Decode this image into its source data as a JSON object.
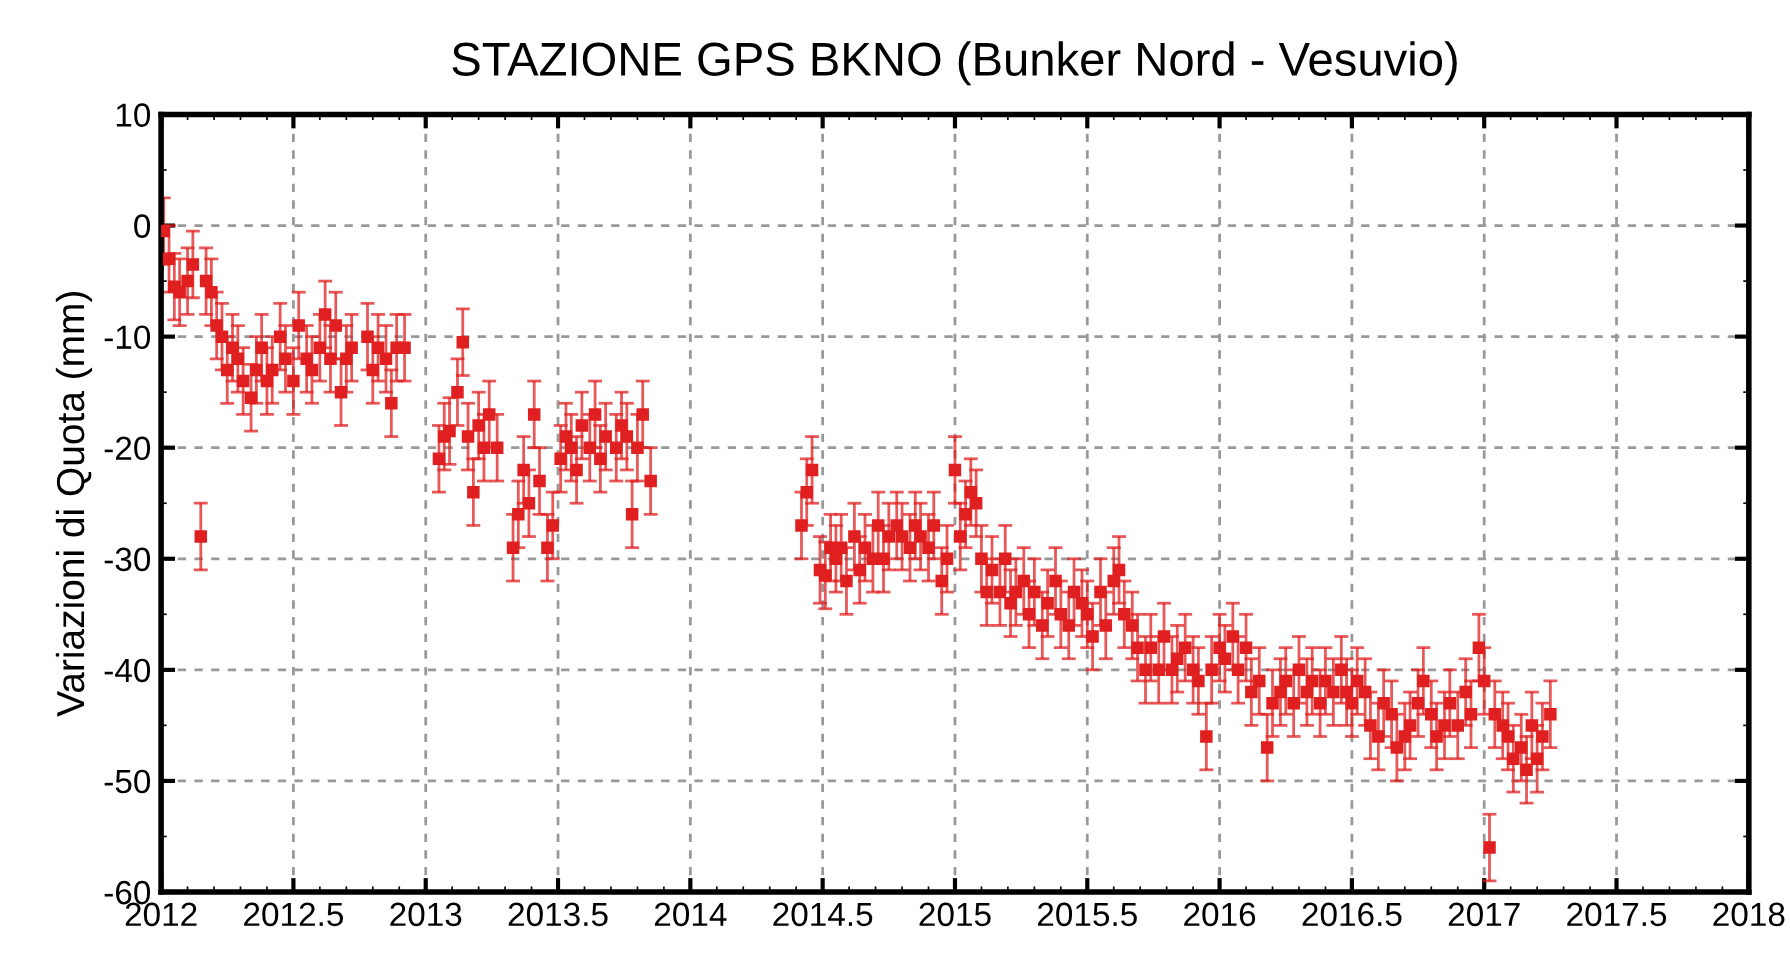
{
  "chart_data": {
    "type": "scatter",
    "title": "STAZIONE GPS BKNO (Bunker Nord - Vesuvio)",
    "ylabel": "Variazioni di Quota (mm)",
    "xlim": [
      2012,
      2018
    ],
    "xticks": [
      2012,
      2012.5,
      2013,
      2013.5,
      2014,
      2014.5,
      2015,
      2015.5,
      2016,
      2016.5,
      2017,
      2017.5,
      2018
    ],
    "ylim": [
      -60,
      10
    ],
    "yticks": [
      -60,
      -50,
      -40,
      -30,
      -20,
      -10,
      0,
      10
    ],
    "grid": true,
    "marker": "square",
    "series": [
      {
        "color": "#e02020",
        "x": [
          2012.01,
          2012.03,
          2012.05,
          2012.07,
          2012.1,
          2012.12,
          2012.15,
          2012.17,
          2012.19,
          2012.21,
          2012.23,
          2012.25,
          2012.27,
          2012.29,
          2012.31,
          2012.34,
          2012.36,
          2012.38,
          2012.4,
          2012.42,
          2012.45,
          2012.47,
          2012.5,
          2012.52,
          2012.55,
          2012.57,
          2012.6,
          2012.62,
          2012.64,
          2012.66,
          2012.68,
          2012.7,
          2012.72,
          2012.78,
          2012.8,
          2012.82,
          2012.85,
          2012.87,
          2012.89,
          2012.92,
          2013.05,
          2013.07,
          2013.09,
          2013.12,
          2013.14,
          2013.16,
          2013.18,
          2013.2,
          2013.22,
          2013.24,
          2013.27,
          2013.33,
          2013.35,
          2013.37,
          2013.39,
          2013.41,
          2013.43,
          2013.46,
          2013.48,
          2013.51,
          2013.53,
          2013.55,
          2013.57,
          2013.59,
          2013.62,
          2013.64,
          2013.66,
          2013.68,
          2013.72,
          2013.74,
          2013.76,
          2013.78,
          2013.8,
          2013.82,
          2013.85,
          2014.42,
          2014.44,
          2014.46,
          2014.49,
          2014.51,
          2014.53,
          2014.55,
          2014.57,
          2014.59,
          2014.62,
          2014.64,
          2014.66,
          2014.69,
          2014.71,
          2014.73,
          2014.75,
          2014.78,
          2014.8,
          2014.83,
          2014.85,
          2014.87,
          2014.9,
          2014.92,
          2014.95,
          2014.97,
          2015.0,
          2015.02,
          2015.04,
          2015.06,
          2015.08,
          2015.1,
          2015.12,
          2015.14,
          2015.17,
          2015.19,
          2015.21,
          2015.23,
          2015.26,
          2015.28,
          2015.3,
          2015.33,
          2015.35,
          2015.38,
          2015.4,
          2015.43,
          2015.45,
          2015.48,
          2015.5,
          2015.52,
          2015.55,
          2015.57,
          2015.6,
          2015.62,
          2015.64,
          2015.67,
          2015.69,
          2015.72,
          2015.74,
          2015.77,
          2015.79,
          2015.82,
          2015.84,
          2015.87,
          2015.9,
          2015.92,
          2015.95,
          2015.97,
          2016.0,
          2016.02,
          2016.05,
          2016.07,
          2016.1,
          2016.12,
          2016.15,
          2016.18,
          2016.2,
          2016.23,
          2016.25,
          2016.28,
          2016.3,
          2016.33,
          2016.35,
          2016.38,
          2016.4,
          2016.43,
          2016.46,
          2016.48,
          2016.5,
          2016.52,
          2016.55,
          2016.57,
          2016.6,
          2016.62,
          2016.65,
          2016.67,
          2016.7,
          2016.72,
          2016.75,
          2016.77,
          2016.8,
          2016.82,
          2016.85,
          2016.87,
          2016.9,
          2016.93,
          2016.95,
          2016.98,
          2017.0,
          2017.02,
          2017.04,
          2017.07,
          2017.09,
          2017.11,
          2017.14,
          2017.16,
          2017.18,
          2017.2,
          2017.22,
          2017.25
        ],
        "values": [
          -0.5,
          -3,
          -5.5,
          -6,
          -5,
          -3.5,
          -28,
          -5,
          -6,
          -9,
          -10,
          -13,
          -11,
          -12,
          -14,
          -15.5,
          -13,
          -11,
          -14,
          -13,
          -10,
          -12,
          -14,
          -9,
          -12,
          -13,
          -11,
          -8,
          -12,
          -9,
          -15,
          -12,
          -11,
          -10,
          -13,
          -11,
          -12,
          -16,
          -11,
          -11,
          -21,
          -19,
          -18.5,
          -15,
          -10.5,
          -19,
          -24,
          -18,
          -20,
          -17,
          -20,
          -29,
          -26,
          -22,
          -25,
          -17,
          -23,
          -29,
          -27,
          -21,
          -19,
          -20,
          -22,
          -18,
          -20,
          -17,
          -21,
          -19,
          -20,
          -18,
          -19,
          -26,
          -20,
          -17,
          -23,
          -27,
          -24,
          -22,
          -31,
          -31.5,
          -29,
          -30,
          -29,
          -32,
          -28,
          -31,
          -29,
          -30,
          -27,
          -30,
          -28,
          -27,
          -28,
          -29,
          -27,
          -28,
          -29,
          -27,
          -32,
          -30,
          -22,
          -28,
          -26,
          -24,
          -25,
          -30,
          -33,
          -31,
          -33,
          -30,
          -34,
          -33,
          -32,
          -35,
          -33,
          -36,
          -34,
          -32,
          -35,
          -36,
          -33,
          -34,
          -35,
          -37,
          -33,
          -36,
          -32,
          -31,
          -35,
          -36,
          -38,
          -40,
          -38,
          -40,
          -37,
          -40,
          -39,
          -38,
          -40,
          -41,
          -46,
          -40,
          -38,
          -39,
          -37,
          -40,
          -38,
          -42,
          -41,
          -47,
          -43,
          -42,
          -41,
          -43,
          -40,
          -42,
          -41,
          -43,
          -41,
          -42,
          -40,
          -42,
          -43,
          -41,
          -42,
          -45,
          -46,
          -43,
          -44,
          -47,
          -46,
          -45,
          -43,
          -41,
          -44,
          -46,
          -45,
          -43,
          -45,
          -42,
          -44,
          -38,
          -41,
          -56,
          -44,
          -45,
          -46,
          -48,
          -47,
          -49,
          -45,
          -48,
          -46,
          -44
        ],
        "errors": [
          3,
          3,
          3,
          3,
          3,
          3,
          3,
          3,
          3,
          3,
          3,
          3,
          3,
          3,
          3,
          3,
          3,
          3,
          3,
          3,
          3,
          3,
          3,
          3,
          3,
          3,
          3,
          3,
          3,
          3,
          3,
          3,
          3,
          3,
          3,
          3,
          3,
          3,
          3,
          3,
          3,
          3,
          3,
          3,
          3,
          3,
          3,
          3,
          3,
          3,
          3,
          3,
          3,
          3,
          3,
          3,
          3,
          3,
          3,
          3,
          3,
          3,
          3,
          3,
          3,
          3,
          3,
          3,
          3,
          3,
          3,
          3,
          3,
          3,
          3,
          3,
          3,
          3,
          3,
          3,
          3,
          3,
          3,
          3,
          3,
          3,
          3,
          3,
          3,
          3,
          3,
          3,
          3,
          3,
          3,
          3,
          3,
          3,
          3,
          3,
          3,
          3,
          3,
          3,
          3,
          3,
          3,
          3,
          3,
          3,
          3,
          3,
          3,
          3,
          3,
          3,
          3,
          3,
          3,
          3,
          3,
          3,
          3,
          3,
          3,
          3,
          3,
          3,
          3,
          3,
          3,
          3,
          3,
          3,
          3,
          3,
          3,
          3,
          3,
          3,
          3,
          3,
          3,
          3,
          3,
          3,
          3,
          3,
          3,
          3,
          3,
          3,
          3,
          3,
          3,
          3,
          3,
          3,
          3,
          3,
          3,
          3,
          3,
          3,
          3,
          3,
          3,
          3,
          3,
          3,
          3,
          3,
          3,
          3,
          3,
          3,
          3,
          3,
          3,
          3,
          3,
          3,
          3,
          3,
          3,
          3,
          3,
          3,
          3,
          3,
          3,
          3,
          3,
          3
        ]
      }
    ]
  }
}
